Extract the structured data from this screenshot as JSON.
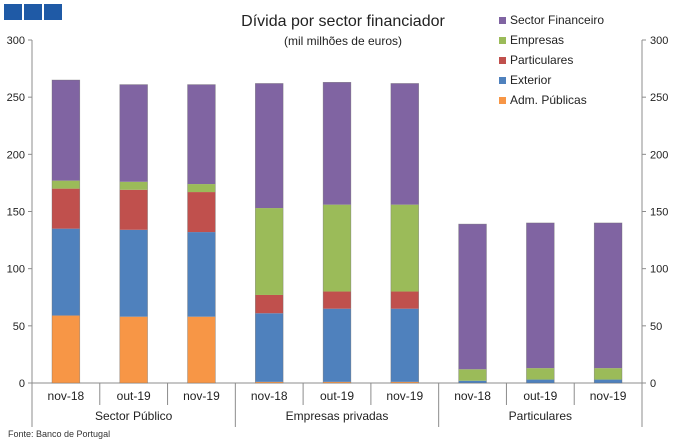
{
  "brand": {
    "logo_color": "#1f5aa6"
  },
  "source": "Fonte: Banco de Portugal",
  "chart_data": {
    "type": "bar",
    "stacked": true,
    "title": "Dívida por sector financiador",
    "subtitle": "(mil milhões de euros)",
    "ylim": [
      0,
      300
    ],
    "yticks": [
      0,
      50,
      100,
      150,
      200,
      250,
      300
    ],
    "y2ticks": [
      0,
      50,
      100,
      150,
      200,
      250,
      300
    ],
    "grid": false,
    "legend_position": "top-right",
    "groups": [
      {
        "label": "Sector Público",
        "categories": [
          "nov-18",
          "out-19",
          "nov-19"
        ]
      },
      {
        "label": "Empresas privadas",
        "categories": [
          "nov-18",
          "out-19",
          "nov-19"
        ]
      },
      {
        "label": "Particulares",
        "categories": [
          "nov-18",
          "out-19",
          "nov-19"
        ]
      }
    ],
    "series": [
      {
        "name": "Adm. Públicas",
        "color": "#f79646",
        "values": [
          59,
          58,
          58,
          1,
          1,
          1,
          0,
          0,
          0
        ]
      },
      {
        "name": "Exterior",
        "color": "#4f81bd",
        "values": [
          76,
          76,
          74,
          60,
          64,
          64,
          2,
          3,
          3
        ]
      },
      {
        "name": "Particulares",
        "color": "#c0504d",
        "values": [
          35,
          35,
          35,
          16,
          15,
          15,
          0,
          0,
          0
        ]
      },
      {
        "name": "Empresas",
        "color": "#9bbb59",
        "values": [
          7,
          7,
          7,
          76,
          76,
          76,
          10,
          10,
          10
        ]
      },
      {
        "name": "Sector Financeiro",
        "color": "#8064a2",
        "values": [
          88,
          85,
          87,
          109,
          107,
          106,
          127,
          127,
          127
        ]
      }
    ]
  }
}
